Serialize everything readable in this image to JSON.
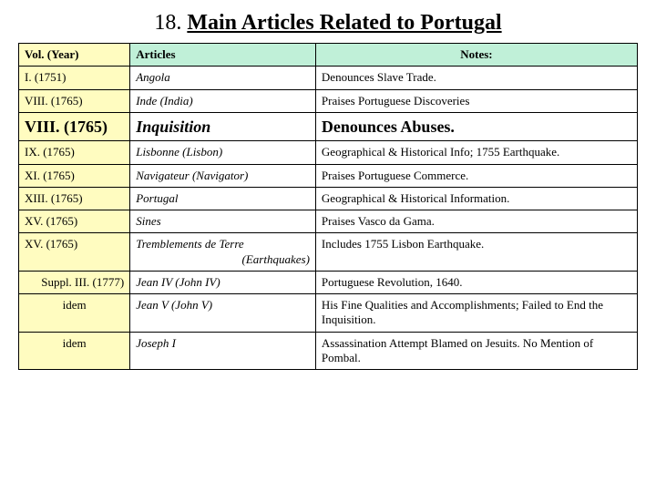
{
  "title": {
    "num": "18.",
    "text": "Main Articles Related to Portugal"
  },
  "headers": {
    "c1": "Vol.  (Year)",
    "c2": "Articles",
    "c3": "Notes:"
  },
  "rows": [
    {
      "vol": "I.     (1751)",
      "art": "Angola",
      "note": "Denounces Slave Trade.",
      "emph": false,
      "align": "left"
    },
    {
      "vol": "VIII. (1765)",
      "art": "Inde (India)",
      "note": "Praises Portuguese Discoveries",
      "emph": false,
      "align": "left"
    },
    {
      "vol": "VIII. (1765)",
      "art": "Inquisition",
      "note": "Denounces Abuses.",
      "emph": true,
      "align": "left"
    },
    {
      "vol": "IX.  (1765)",
      "art": "Lisbonne (Lisbon)",
      "note": "Geographical & Historical Info; 1755 Earthquake.",
      "emph": false,
      "align": "left"
    },
    {
      "vol": "XI.  (1765)",
      "art": "Navigateur (Navigator)",
      "note": "Praises Portuguese Commerce.",
      "emph": false,
      "align": "left"
    },
    {
      "vol": "XIII. (1765)",
      "art": "Portugal",
      "note": "Geographical & Historical Information.",
      "emph": false,
      "align": "left"
    },
    {
      "vol": "XV. (1765)",
      "art": "Sines",
      "note": "Praises Vasco da Gama.",
      "emph": false,
      "align": "left"
    },
    {
      "vol": "XV. (1765)",
      "art": "Tremblements de Terre",
      "art2": "(Earthquakes)",
      "note": "Includes 1755 Lisbon Earthquake.",
      "emph": false,
      "align": "left"
    },
    {
      "vol": "Suppl. III. (1777)",
      "art": "Jean IV (John IV)",
      "note": "Portuguese Revolution, 1640.",
      "emph": false,
      "align": "right"
    },
    {
      "vol": "idem",
      "art": "Jean V (John V)",
      "note": "His Fine Qualities and Accomplishments; Failed to End the Inquisition.",
      "emph": false,
      "align": "center"
    },
    {
      "vol": "idem",
      "art": "Joseph I",
      "note": "Assassination Attempt Blamed on Jesuits. No Mention of Pombal.",
      "emph": false,
      "align": "center"
    }
  ]
}
